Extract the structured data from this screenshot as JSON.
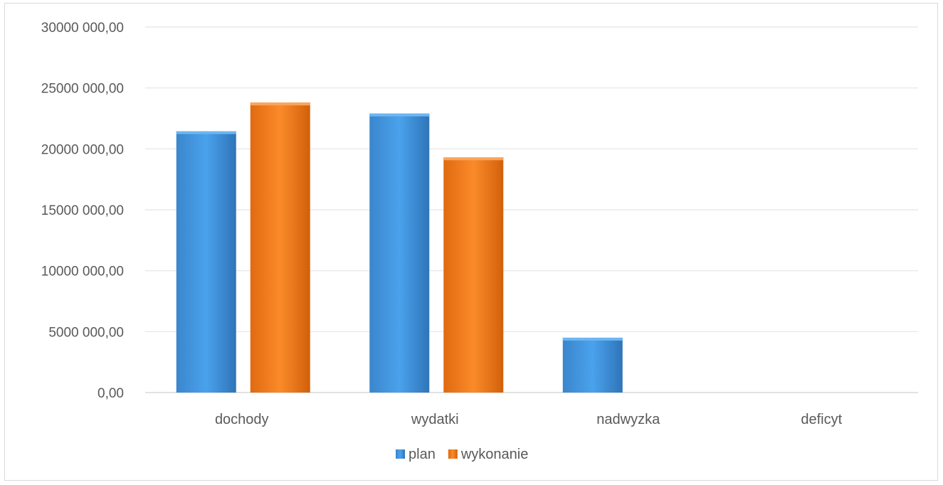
{
  "chart_data": {
    "type": "bar",
    "title": "",
    "xlabel": "",
    "ylabel": "",
    "categories": [
      "dochody",
      "wydatki",
      "nadwyzka",
      "deficyt"
    ],
    "series": [
      {
        "name": "plan",
        "color": "#3f8fd8",
        "values": [
          21450000,
          22900000,
          4500000,
          0
        ]
      },
      {
        "name": "wykonanie",
        "color": "#f0781b",
        "values": [
          23800000,
          19300000,
          0,
          0
        ]
      }
    ],
    "ylim": [
      0,
      30000000
    ],
    "yticks": [
      0,
      5000000,
      10000000,
      15000000,
      20000000,
      25000000,
      30000000
    ],
    "ytick_labels": [
      "0,00",
      "5000 000,00",
      "10000 000,00",
      "15000 000,00",
      "20000 000,00",
      "25000 000,00",
      "30000 000,00"
    ],
    "grid": true,
    "legend_position": "bottom"
  }
}
